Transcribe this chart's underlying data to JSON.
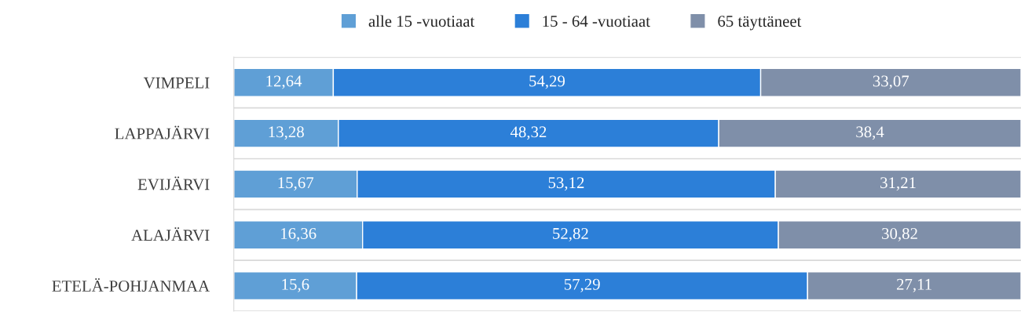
{
  "chart_data": {
    "type": "bar",
    "orientation": "horizontal",
    "stacked": true,
    "categories": [
      "VIMPELI",
      "LAPPAJÄRVI",
      "EVIJÄRVI",
      "ALAJÄRVI",
      "ETELÄ-POHJANMAA"
    ],
    "series": [
      {
        "name": "alle 15 -vuotiaat",
        "color": "#5f9fd6",
        "values": [
          12.64,
          13.28,
          15.67,
          16.36,
          15.6
        ],
        "value_labels": [
          "12,64",
          "13,28",
          "15,67",
          "16,36",
          "15,6"
        ]
      },
      {
        "name": "15 - 64 -vuotiaat",
        "color": "#2c7fd8",
        "values": [
          54.29,
          48.32,
          53.12,
          52.82,
          57.29
        ],
        "value_labels": [
          "54,29",
          "48,32",
          "53,12",
          "52,82",
          "57,29"
        ]
      },
      {
        "name": "65 täyttäneet",
        "color": "#7f8fa9",
        "values": [
          33.07,
          38.4,
          31.21,
          30.82,
          27.11
        ],
        "value_labels": [
          "33,07",
          "38,4",
          "31,21",
          "30,82",
          "27,11"
        ]
      }
    ],
    "legend": "top",
    "grid": "y",
    "tick_labels": "y"
  }
}
